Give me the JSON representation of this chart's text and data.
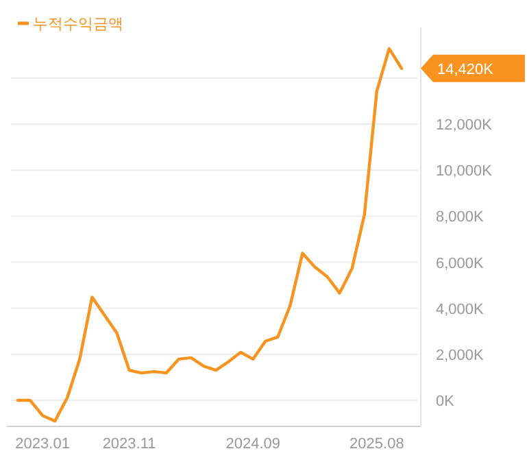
{
  "chart_data": {
    "type": "line",
    "categories": [
      null,
      null,
      "2023.01",
      null,
      null,
      null,
      null,
      null,
      null,
      "2023.11",
      null,
      null,
      null,
      null,
      null,
      null,
      null,
      null,
      null,
      "2024.09",
      null,
      null,
      null,
      null,
      null,
      null,
      null,
      null,
      null,
      "2025.08",
      null,
      null
    ],
    "series": [
      {
        "name": "누적수익금액",
        "color": "#f7931e",
        "values": [
          0,
          0,
          -660,
          -900,
          120,
          1790,
          4480,
          3700,
          2930,
          1310,
          1190,
          1250,
          1190,
          1790,
          1850,
          1490,
          1310,
          1670,
          2090,
          1790,
          2570,
          2750,
          4120,
          6390,
          5790,
          5370,
          4660,
          5730,
          8060,
          13430,
          15280,
          14420
        ]
      }
    ],
    "ylim": [
      -1130,
      16200
    ],
    "yticks": [
      {
        "value": 0,
        "label": "0K"
      },
      {
        "value": 2000,
        "label": "2,000K"
      },
      {
        "value": 4000,
        "label": "4,000K"
      },
      {
        "value": 6000,
        "label": "6,000K"
      },
      {
        "value": 8000,
        "label": "8,000K"
      },
      {
        "value": 10000,
        "label": "10,000K"
      },
      {
        "value": 12000,
        "label": "12,000K"
      },
      {
        "value": 14000,
        "label": null
      }
    ],
    "annotations": [
      "14,420K"
    ],
    "grid": "y",
    "legend": "top left",
    "marker": "none",
    "line_style": "solid"
  }
}
